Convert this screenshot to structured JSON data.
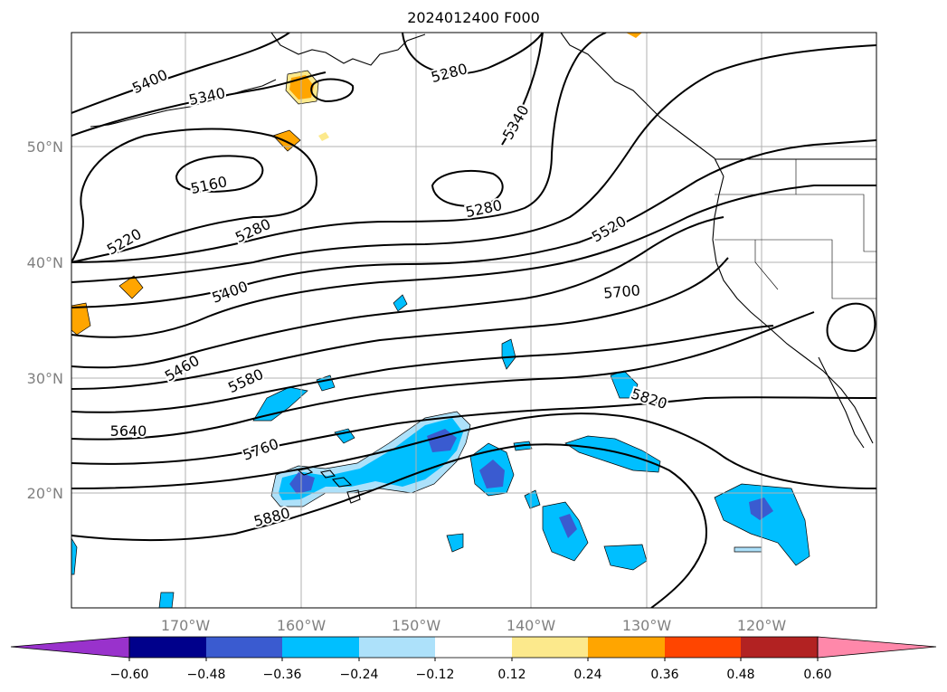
{
  "title": "2024012400 F000",
  "latitude_labels": [
    "50°N",
    "40°N",
    "30°N",
    "20°N"
  ],
  "longitude_labels": [
    "170°W",
    "160°W",
    "150°W",
    "140°W",
    "130°W",
    "120°W"
  ],
  "contour_labels": [
    "5400",
    "5340",
    "5280",
    "5340",
    "5160",
    "5220",
    "5280",
    "5280",
    "5520",
    "5400",
    "5700",
    "5460",
    "5580",
    "5820",
    "5640",
    "5760",
    "5880"
  ],
  "colorbar": {
    "ticks": [
      "−0.60",
      "−0.48",
      "−0.36",
      "−0.24",
      "−0.12",
      "0.12",
      "0.24",
      "0.36",
      "0.48",
      "0.60"
    ],
    "colors": [
      "#9932CC",
      "#00008B",
      "#3A5BD0",
      "#00BFFF",
      "#ADE1FA",
      "#FFFFFF",
      "#FCE98C",
      "#FFA500",
      "#FF4500",
      "#B22222",
      "#FF88AA"
    ]
  },
  "shading_colors": {
    "light_blue": "#ADE1FA",
    "blue": "#00BFFF",
    "royal_blue": "#3A5BD0",
    "light_yellow": "#FCE98C",
    "orange": "#FFA500"
  }
}
